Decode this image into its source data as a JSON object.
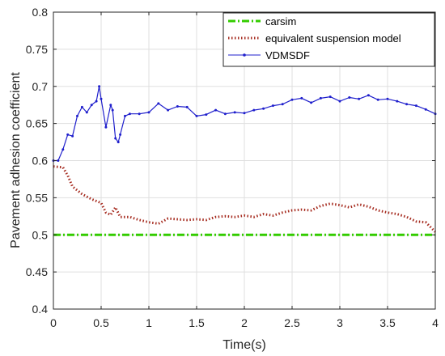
{
  "chart_data": {
    "type": "line",
    "title": "",
    "xlabel": "Time(s)",
    "ylabel": "Pavement adhesion coefficient",
    "xlim": [
      0,
      4
    ],
    "ylim": [
      0.4,
      0.8
    ],
    "xticks": [
      "0",
      "0.5",
      "1",
      "1.5",
      "2",
      "2.5",
      "3",
      "3.5",
      "4"
    ],
    "yticks": [
      "0.4",
      "0.45",
      "0.5",
      "0.55",
      "0.6",
      "0.65",
      "0.7",
      "0.75",
      "0.8"
    ],
    "grid": true,
    "legend_position": "top-right",
    "series": [
      {
        "name": "carsim",
        "color": "#33cc00",
        "style": "dash-dot",
        "x": [
          0,
          4
        ],
        "y": [
          0.5,
          0.5
        ]
      },
      {
        "name": "equivalent suspension model",
        "color": "#a52a1e",
        "style": "dotted",
        "x": [
          0,
          0.1,
          0.15,
          0.2,
          0.3,
          0.4,
          0.5,
          0.55,
          0.6,
          0.65,
          0.7,
          0.8,
          0.9,
          1.0,
          1.1,
          1.2,
          1.3,
          1.4,
          1.5,
          1.6,
          1.7,
          1.8,
          1.9,
          2.0,
          2.1,
          2.2,
          2.3,
          2.4,
          2.5,
          2.6,
          2.7,
          2.8,
          2.9,
          3.0,
          3.1,
          3.2,
          3.3,
          3.4,
          3.5,
          3.6,
          3.7,
          3.8,
          3.9,
          4.0
        ],
        "y": [
          0.592,
          0.591,
          0.58,
          0.565,
          0.555,
          0.548,
          0.543,
          0.53,
          0.527,
          0.537,
          0.524,
          0.524,
          0.52,
          0.517,
          0.515,
          0.522,
          0.521,
          0.52,
          0.521,
          0.52,
          0.524,
          0.525,
          0.524,
          0.526,
          0.524,
          0.528,
          0.526,
          0.53,
          0.533,
          0.534,
          0.533,
          0.539,
          0.542,
          0.54,
          0.537,
          0.541,
          0.538,
          0.533,
          0.53,
          0.528,
          0.524,
          0.518,
          0.517,
          0.504
        ]
      },
      {
        "name": "VDMSDF",
        "color": "#1f1fcc",
        "style": "solid-point",
        "x": [
          0,
          0.05,
          0.1,
          0.15,
          0.2,
          0.25,
          0.3,
          0.35,
          0.4,
          0.45,
          0.48,
          0.5,
          0.55,
          0.6,
          0.62,
          0.65,
          0.68,
          0.7,
          0.75,
          0.8,
          0.9,
          1.0,
          1.1,
          1.2,
          1.3,
          1.4,
          1.5,
          1.6,
          1.7,
          1.8,
          1.9,
          2.0,
          2.1,
          2.2,
          2.3,
          2.4,
          2.5,
          2.6,
          2.7,
          2.8,
          2.9,
          3.0,
          3.1,
          3.2,
          3.3,
          3.4,
          3.5,
          3.6,
          3.7,
          3.8,
          3.9,
          4.0
        ],
        "y": [
          0.6,
          0.6,
          0.615,
          0.635,
          0.633,
          0.66,
          0.672,
          0.665,
          0.675,
          0.68,
          0.7,
          0.683,
          0.645,
          0.675,
          0.668,
          0.63,
          0.625,
          0.635,
          0.66,
          0.663,
          0.663,
          0.665,
          0.677,
          0.668,
          0.673,
          0.672,
          0.66,
          0.662,
          0.668,
          0.663,
          0.665,
          0.664,
          0.668,
          0.67,
          0.674,
          0.676,
          0.682,
          0.684,
          0.678,
          0.684,
          0.686,
          0.68,
          0.685,
          0.683,
          0.688,
          0.682,
          0.683,
          0.68,
          0.676,
          0.674,
          0.669,
          0.663
        ]
      }
    ]
  }
}
